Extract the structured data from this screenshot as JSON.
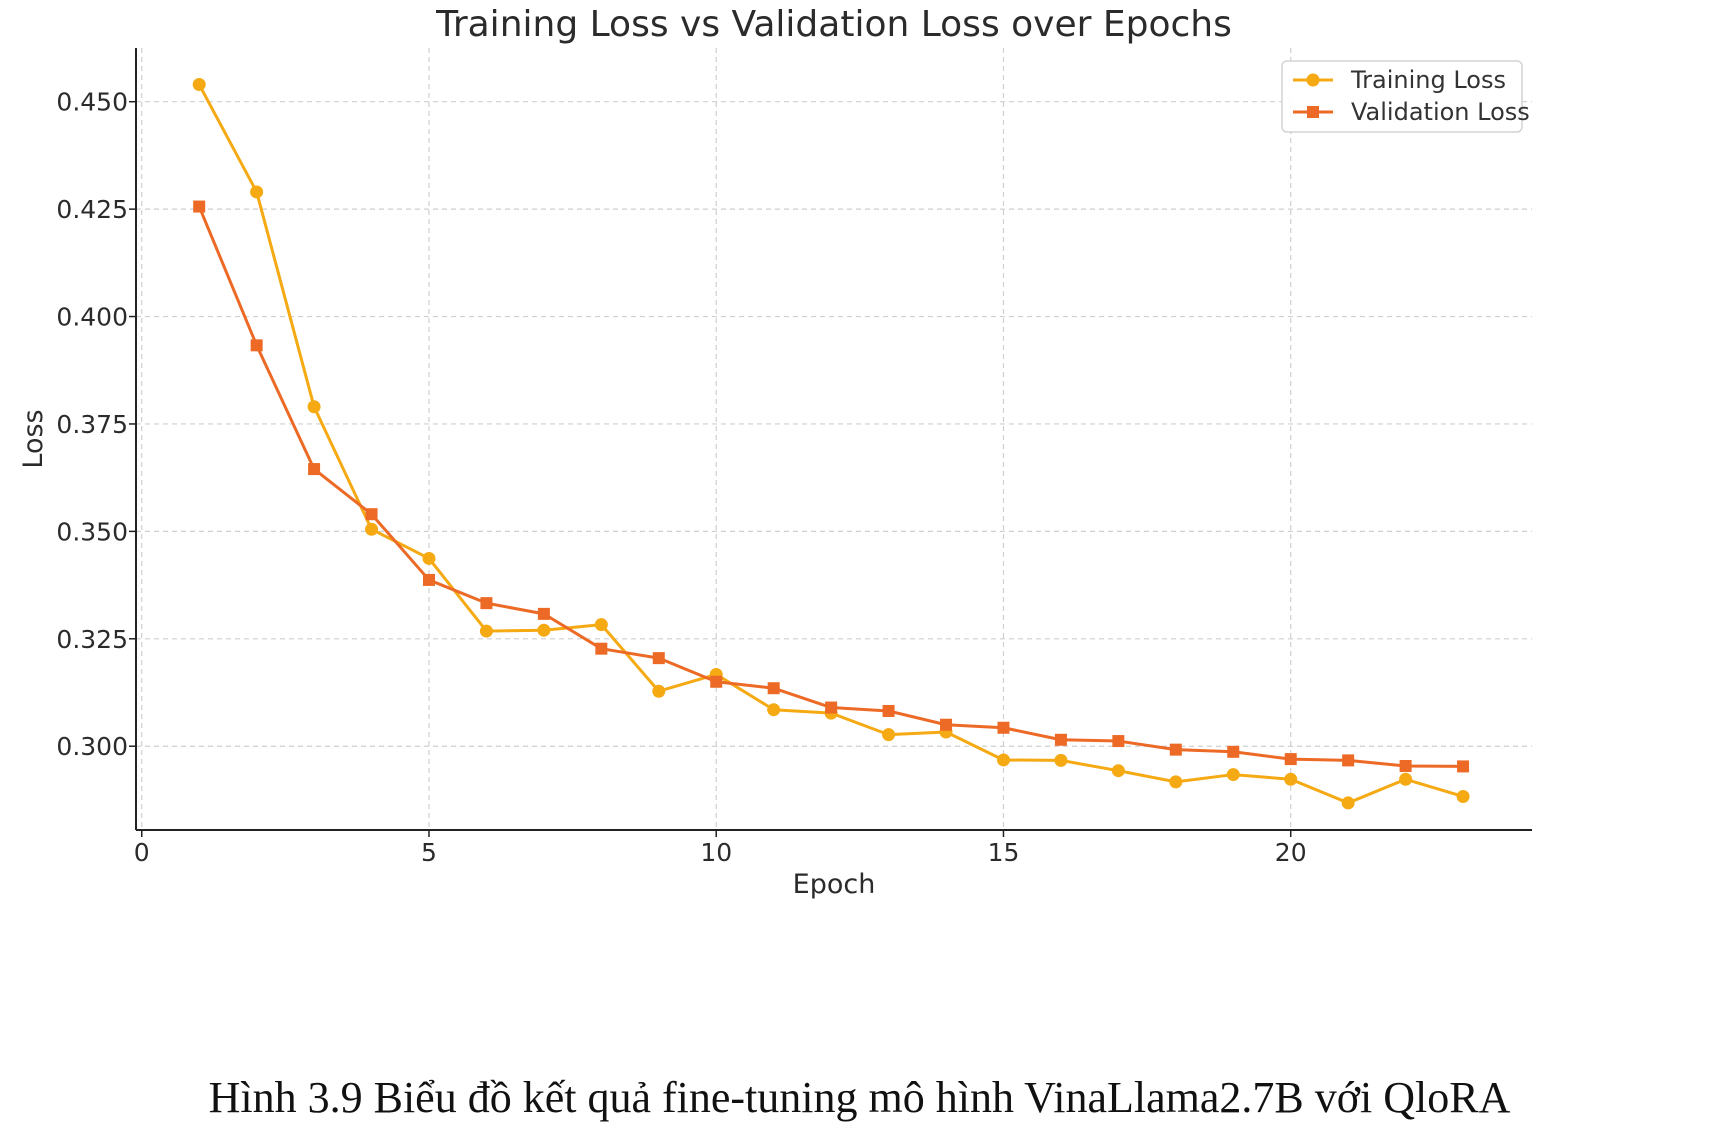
{
  "caption": "Hình 3.9 Biểu đồ kết quả fine-tuning mô hình VinaLlama2.7B với QloRA",
  "chart_data": {
    "type": "line",
    "title": "Training Loss vs Validation Loss over Epochs",
    "xlabel": "Epoch",
    "ylabel": "Loss",
    "xlim": [
      -0.1,
      24.2
    ],
    "ylim": [
      0.2805,
      0.4625
    ],
    "xticks": [
      0,
      5,
      10,
      15,
      20
    ],
    "yticks": [
      0.3,
      0.325,
      0.35,
      0.375,
      0.4,
      0.425,
      0.45
    ],
    "ytick_labels": [
      "0.300",
      "0.325",
      "0.350",
      "0.375",
      "0.400",
      "0.425",
      "0.450"
    ],
    "grid": true,
    "legend_position": "top-right",
    "x": [
      1,
      2,
      3,
      4,
      5,
      6,
      7,
      8,
      9,
      10,
      11,
      12,
      13,
      14,
      15,
      16,
      17,
      18,
      19,
      20,
      21,
      22,
      23
    ],
    "series": [
      {
        "name": "Training Loss",
        "color": "#f5a912",
        "marker": "circle",
        "values": [
          0.454,
          0.429,
          0.379,
          0.3505,
          0.3437,
          0.3268,
          0.327,
          0.3283,
          0.3128,
          0.3167,
          0.3085,
          0.3077,
          0.3027,
          0.3033,
          0.2968,
          0.2967,
          0.2943,
          0.2917,
          0.2934,
          0.2923,
          0.2868,
          0.2923,
          0.2883
        ]
      },
      {
        "name": "Validation Loss",
        "color": "#ec6a25",
        "marker": "square",
        "values": [
          0.4256,
          0.3933,
          0.3645,
          0.354,
          0.3387,
          0.3333,
          0.3308,
          0.3227,
          0.3205,
          0.315,
          0.3135,
          0.309,
          0.3082,
          0.305,
          0.3043,
          0.3015,
          0.3012,
          0.2992,
          0.2987,
          0.297,
          0.2967,
          0.2954,
          0.2953
        ]
      }
    ]
  }
}
